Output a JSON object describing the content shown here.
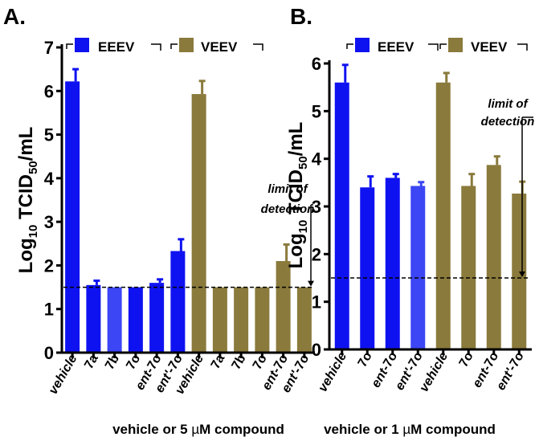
{
  "colors": {
    "eeev": "#0f12f0",
    "eeev_light": "#3c46f5",
    "veev": "#8a7a3c",
    "axis": "#000000"
  },
  "chart_data": [
    {
      "panel_label": "A.",
      "type": "bar",
      "title": "",
      "ylabel_main": "Log",
      "ylabel_sub1": "10",
      "ylabel_mid": " TCID",
      "ylabel_sub2": "50",
      "ylabel_end": "/mL",
      "xlabel_pre": "vehicle or 5 ",
      "xlabel_mu": "µ",
      "xlabel_post": "M compound",
      "ylim": [
        0,
        7
      ],
      "yticks": [
        "0",
        "1",
        "2",
        "3",
        "4",
        "5",
        "6",
        "7"
      ],
      "limit_of_detection": 1.5,
      "annotation": [
        "limit of",
        "detection"
      ],
      "legend": [
        {
          "name": "EEEV",
          "color_key": "eeev"
        },
        {
          "name": "VEEV",
          "color_key": "veev"
        }
      ],
      "categories": [
        {
          "prefix": "",
          "suffix": "vehicle"
        },
        {
          "prefix": "",
          "suffix": "7a"
        },
        {
          "prefix": "",
          "suffix": "7b"
        },
        {
          "prefix": "",
          "suffix": "7o"
        },
        {
          "prefix": "ent",
          "suffix": "-7o"
        },
        {
          "prefix": "ent'",
          "suffix": "-7o"
        },
        {
          "prefix": "",
          "suffix": "vehicle"
        },
        {
          "prefix": "",
          "suffix": "7a"
        },
        {
          "prefix": "",
          "suffix": "7b"
        },
        {
          "prefix": "",
          "suffix": "7o"
        },
        {
          "prefix": "ent",
          "suffix": "-7o"
        },
        {
          "prefix": "ent'",
          "suffix": "-7o"
        }
      ],
      "values": [
        6.22,
        1.55,
        1.5,
        1.5,
        1.6,
        2.33,
        5.93,
        1.5,
        1.5,
        1.5,
        2.1,
        1.5
      ],
      "errors": [
        0.28,
        0.1,
        0,
        0,
        0.08,
        0.27,
        0.3,
        0,
        0,
        0,
        0.38,
        0
      ],
      "colors": [
        "eeev",
        "eeev",
        "eeev_light",
        "eeev",
        "eeev",
        "eeev",
        "veev",
        "veev",
        "veev",
        "veev",
        "veev",
        "veev"
      ]
    },
    {
      "panel_label": "B.",
      "type": "bar",
      "title": "",
      "ylabel_main": "Log",
      "ylabel_sub1": "10",
      "ylabel_mid": " TCID",
      "ylabel_sub2": "50",
      "ylabel_end": "/mL",
      "xlabel_pre": "vehicle or 1 ",
      "xlabel_mu": "µ",
      "xlabel_post": "M compound",
      "ylim": [
        0,
        6
      ],
      "yticks": [
        "0",
        "1",
        "2",
        "3",
        "4",
        "5",
        "6"
      ],
      "limit_of_detection": 1.5,
      "annotation": [
        "limit of",
        "detection"
      ],
      "legend": [
        {
          "name": "EEEV",
          "color_key": "eeev"
        },
        {
          "name": "VEEV",
          "color_key": "veev"
        }
      ],
      "categories": [
        {
          "prefix": "",
          "suffix": "vehicle"
        },
        {
          "prefix": "",
          "suffix": "7o"
        },
        {
          "prefix": "ent",
          "suffix": "-7o"
        },
        {
          "prefix": "ent'",
          "suffix": "-7o"
        },
        {
          "prefix": "",
          "suffix": "vehicle"
        },
        {
          "prefix": "",
          "suffix": "7o"
        },
        {
          "prefix": "ent",
          "suffix": "-7o"
        },
        {
          "prefix": "ent'",
          "suffix": "-7o"
        }
      ],
      "values": [
        5.6,
        3.4,
        3.6,
        3.43,
        5.6,
        3.43,
        3.87,
        3.27
      ],
      "errors": [
        0.37,
        0.23,
        0.08,
        0.08,
        0.2,
        0.25,
        0.18,
        0.25
      ],
      "colors": [
        "eeev",
        "eeev",
        "eeev",
        "eeev_light",
        "veev",
        "veev",
        "veev",
        "veev"
      ]
    }
  ]
}
